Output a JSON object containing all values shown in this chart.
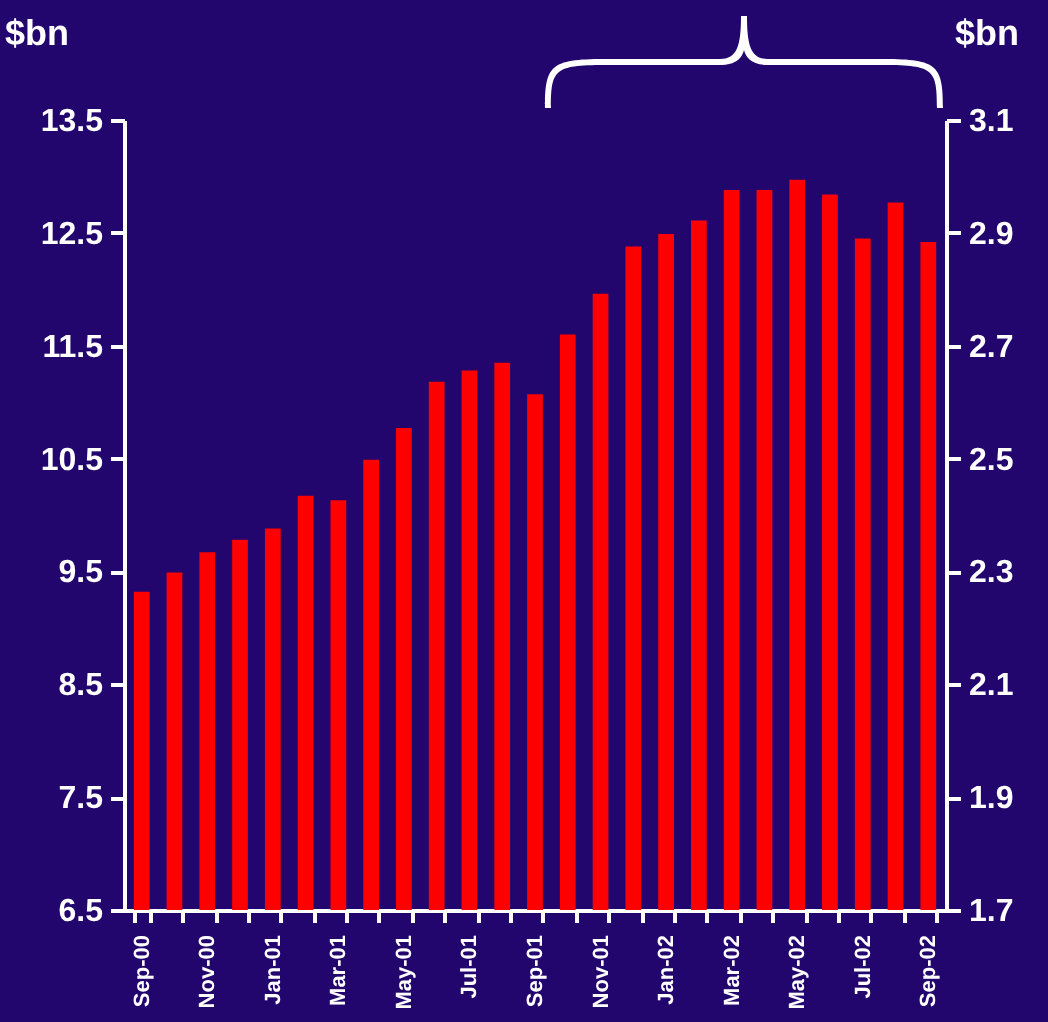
{
  "chart_data": {
    "type": "bar",
    "ylabel": "$bn",
    "y2label": "$bn",
    "categories": [
      "Sep-00",
      null,
      "Nov-00",
      null,
      "Jan-01",
      null,
      "Mar-01",
      null,
      "May-01",
      null,
      "Jul-01",
      null,
      "Sep-01",
      null,
      "Nov-01",
      null,
      "Jan-02",
      null,
      "Mar-02",
      null,
      "May-02",
      null,
      "Jul-02",
      null,
      "Sep-02"
    ],
    "values": [
      9.32,
      9.49,
      9.67,
      9.78,
      9.88,
      10.17,
      10.13,
      10.49,
      10.77,
      11.18,
      11.28,
      11.35,
      11.07,
      11.6,
      11.96,
      12.38,
      12.49,
      12.61,
      12.88,
      12.88,
      12.97,
      12.84,
      12.45,
      12.77,
      12.42
    ],
    "color": "#ff0000",
    "ylim": [
      6.5,
      13.5
    ],
    "yticks": [
      6.5,
      7.5,
      8.5,
      9.5,
      10.5,
      11.5,
      12.5,
      13.5
    ],
    "y2lim": [
      1.7,
      3.1
    ],
    "y2ticks": [
      1.7,
      1.9,
      2.1,
      2.3,
      2.5,
      2.7,
      2.9,
      3.1
    ],
    "grid": false
  }
}
